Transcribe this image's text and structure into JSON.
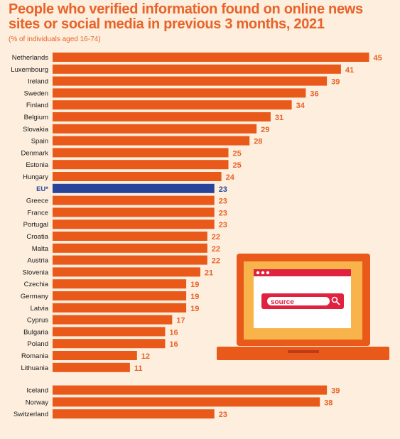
{
  "title": "People who verified information found on online news sites or social media in previous 3 months, 2021",
  "subtitle": "(% of individuals aged 16-74)",
  "colors": {
    "bar": "#e8591a",
    "eu_bar": "#28449a",
    "background": "#fdeedd",
    "accent": "#e8632a"
  },
  "illustration": {
    "search_text": "source",
    "icons": [
      "laptop-icon",
      "search-icon",
      "browser-window-icon"
    ]
  },
  "chart_data": {
    "type": "bar",
    "orientation": "horizontal",
    "title": "People who verified information found on online news sites or social media in previous 3 months, 2021",
    "subtitle": "(% of individuals aged 16-74)",
    "xlim": [
      0,
      50
    ],
    "grid": false,
    "categories": [
      "Netherlands",
      "Luxembourg",
      "Ireland",
      "Sweden",
      "Finland",
      "Belgium",
      "Slovakia",
      "Spain",
      "Denmark",
      "Estonia",
      "Hungary",
      "EU*",
      "Greece",
      "France",
      "Portugal",
      "Croatia",
      "Malta",
      "Austria",
      "Slovenia",
      "Czechia",
      "Germany",
      "Latvia",
      "Cyprus",
      "Bulgaria",
      "Poland",
      "Romania",
      "Lithuania",
      "Iceland",
      "Norway",
      "Switzerland"
    ],
    "values": [
      45,
      41,
      39,
      36,
      34,
      31,
      29,
      28,
      25,
      25,
      24,
      23,
      23,
      23,
      23,
      22,
      22,
      22,
      21,
      19,
      19,
      19,
      17,
      16,
      16,
      12,
      11,
      39,
      38,
      23
    ],
    "highlight": "EU*",
    "group_break_before": "Iceland"
  }
}
